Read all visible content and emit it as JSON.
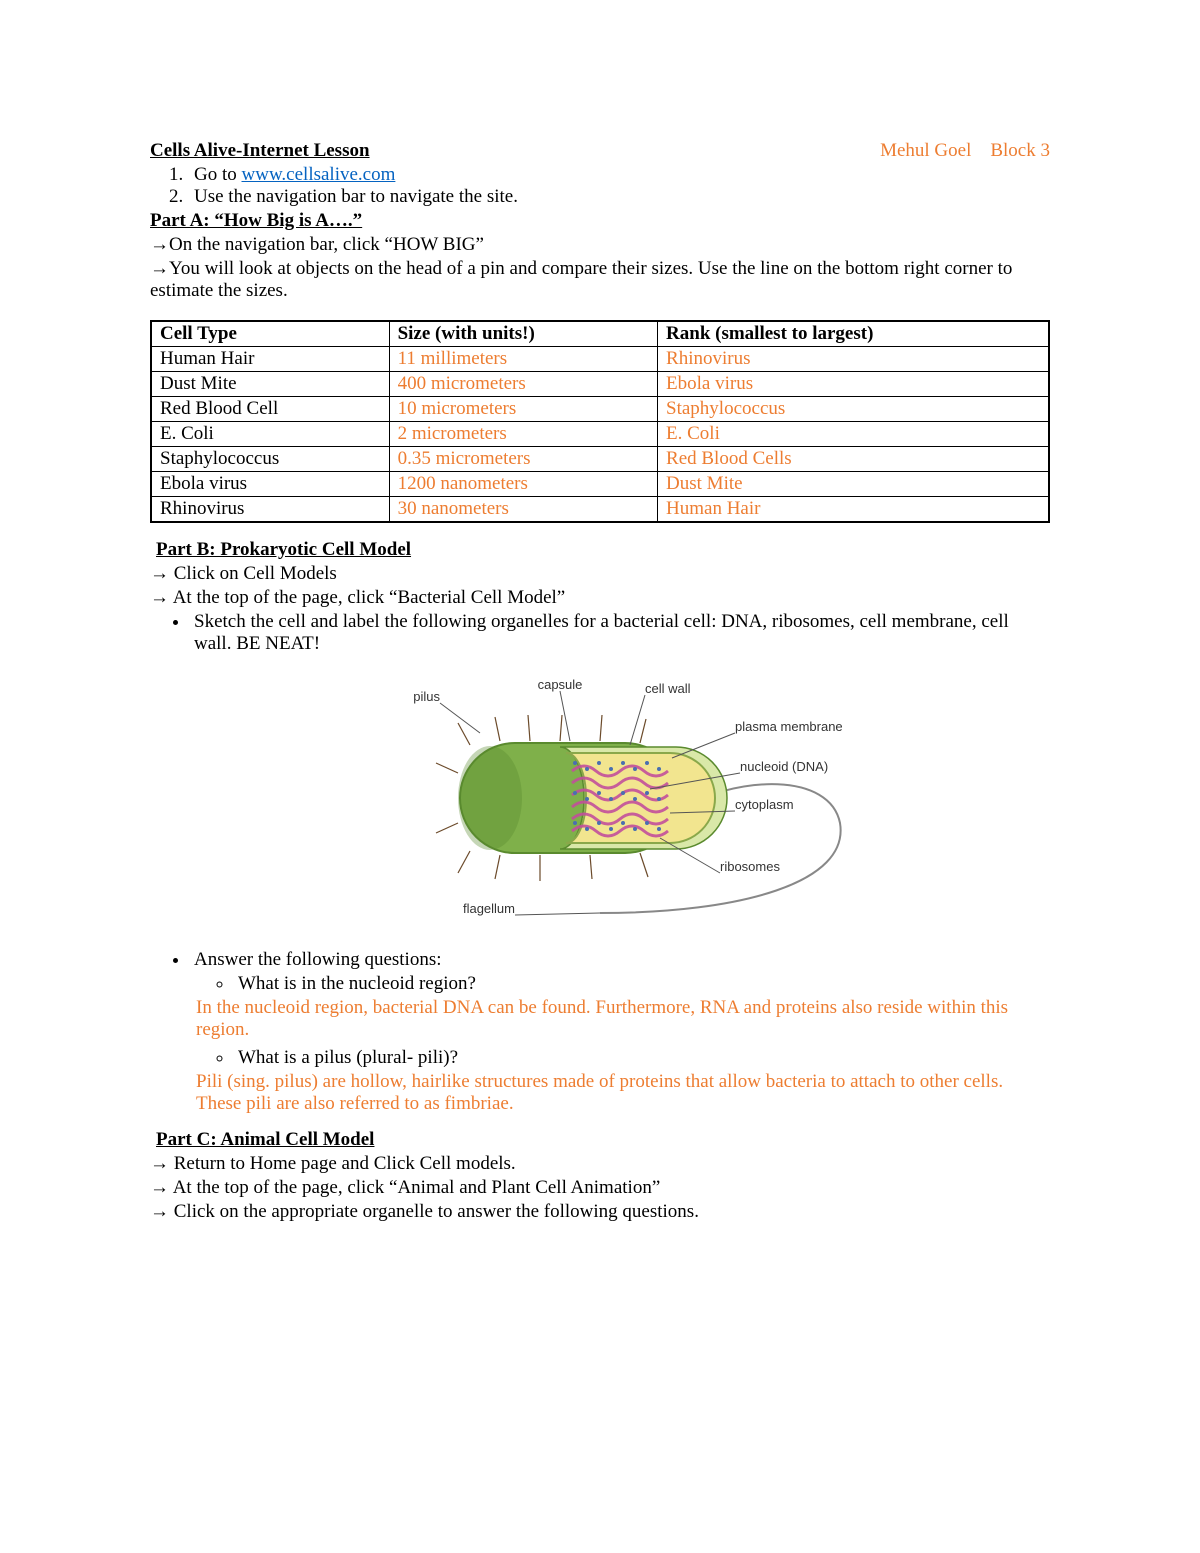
{
  "header": {
    "title": "Cells Alive-Internet Lesson",
    "student": "Mehul Goel",
    "block": "Block 3"
  },
  "intro_steps": [
    "Go to ",
    "Use the navigation bar to navigate the site."
  ],
  "intro_link": "www.cellsalive.com",
  "partA": {
    "title": "Part A:  “How Big is A….”",
    "line1": "On the navigation bar, click “HOW BIG”",
    "line2": "You will look at objects on the head of a pin and compare their sizes.  Use the line on the bottom right corner to estimate the sizes."
  },
  "table": {
    "headers": [
      "Cell Type",
      "Size (with units!)",
      "Rank (smallest to largest)"
    ],
    "rows": [
      [
        "Human Hair",
        "11 millimeters",
        "Rhinovirus"
      ],
      [
        "Dust Mite",
        "400 micrometers",
        "Ebola virus"
      ],
      [
        "Red Blood Cell",
        "10 micrometers",
        "Staphylococcus"
      ],
      [
        "E. Coli",
        "2 micrometers",
        "E. Coli"
      ],
      [
        "Staphylococcus",
        "0.35 micrometers",
        "Red Blood Cells"
      ],
      [
        "Ebola virus",
        "1200 nanometers",
        "Dust Mite"
      ],
      [
        "Rhinovirus",
        "30 nanometers",
        "Human Hair"
      ]
    ],
    "value_color": "#ed7d31"
  },
  "partB": {
    "title": "Part B: Prokaryotic Cell Model",
    "line1": "Click on Cell Models",
    "line2": "At the top of the page, click “Bacterial Cell Model”",
    "bullet_sketch": "Sketch the cell and label the following organelles for a bacterial cell: DNA, ribosomes, cell membrane, cell wall. BE NEAT!",
    "bullet_questions": "Answer the following questions:",
    "q1": "What is in the nucleoid region?",
    "a1": "In the nucleoid region, bacterial DNA can be found. Furthermore, RNA and proteins also reside within this region.",
    "q2": "What is a pilus (plural- pili)?",
    "a2": "Pili (sing. pilus) are hollow, hairlike structures made of proteins that allow bacteria to attach to other cells. These pili are also referred to as fimbriae."
  },
  "diagram": {
    "labels": {
      "pilus": "pilus",
      "capsule": "capsule",
      "cell_wall": "cell wall",
      "plasma_membrane": "plasma membrane",
      "nucleoid": "nucleoid (DNA)",
      "cytoplasm": "cytoplasm",
      "ribosomes": "ribosomes",
      "flagellum": "flagellum"
    },
    "colors": {
      "body_outer": "#7fb04a",
      "body_shade": "#5a8a2e",
      "cutaway_wall": "#d9e8a8",
      "membrane": "#8aa84a",
      "cytoplasm": "#f2e58f",
      "nucleoid": "#c24f9b",
      "ribosome": "#4a6fb0",
      "pilus": "#6b4a2a",
      "flagellum": "#888888",
      "label_line": "#555555",
      "label_text": "#333333"
    }
  },
  "partC": {
    "title": "Part C: Animal Cell Model",
    "line1": "Return to Home page and Click Cell models.",
    "line2": "At the top of the page, click “Animal and Plant Cell Animation”",
    "line3": "Click on the appropriate organelle to answer the following questions."
  },
  "arrow_glyph": "→"
}
